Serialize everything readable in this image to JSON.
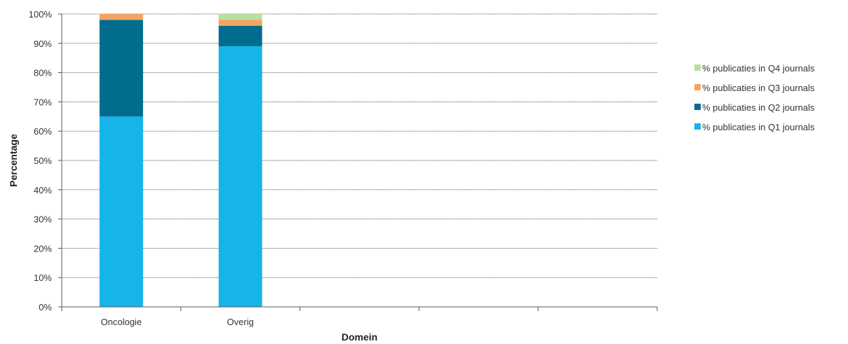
{
  "chart_data": {
    "type": "bar",
    "stacked": true,
    "categories": [
      "Oncologie",
      "Overig",
      "",
      "",
      ""
    ],
    "series": [
      {
        "name": "% publicaties in Q1 journals",
        "color": "#16b4e8",
        "values": [
          65,
          89,
          null,
          null,
          null
        ]
      },
      {
        "name": "% publicaties in Q2 journals",
        "color": "#006d8f",
        "values": [
          33,
          7,
          null,
          null,
          null
        ]
      },
      {
        "name": "% publicaties in Q3 journals",
        "color": "#f4a460",
        "values": [
          2,
          2,
          null,
          null,
          null
        ]
      },
      {
        "name": "% publicaties in Q4 journals",
        "color": "#b7e0a0",
        "values": [
          0,
          2,
          null,
          null,
          null
        ]
      }
    ],
    "xlabel": "Domein",
    "ylabel": "Percentage",
    "ylim": [
      0,
      100
    ],
    "yticks": [
      "0%",
      "10%",
      "20%",
      "30%",
      "40%",
      "50%",
      "60%",
      "70%",
      "80%",
      "90%",
      "100%"
    ],
    "grid": true,
    "legend_position": "right",
    "legend_order": [
      3,
      2,
      1,
      0
    ]
  }
}
